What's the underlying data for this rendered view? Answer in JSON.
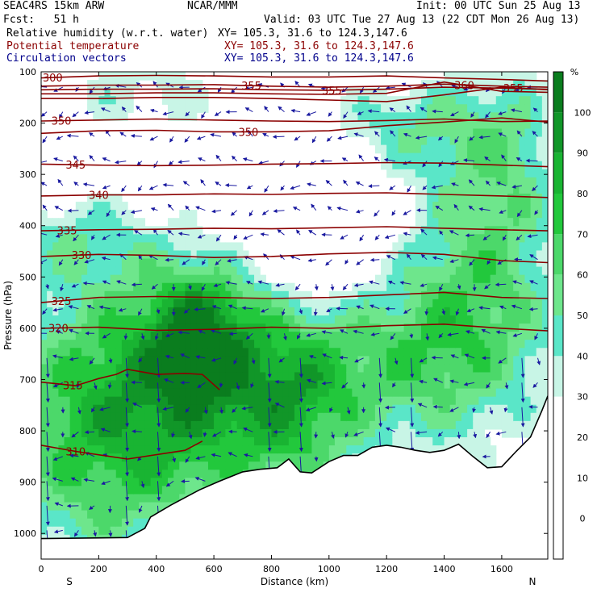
{
  "header": {
    "model": "SEAC4RS 15km ARW",
    "org": "NCAR/MMM",
    "init": "Init: 00 UTC Sun 25 Aug 13",
    "fcst": "Fcst:   51 h",
    "valid": "Valid: 03 UTC Tue 27 Aug 13 (22 CDT Mon 26 Aug 13)",
    "fields": [
      {
        "name": "Relative humidity (w.r.t. water)",
        "xy": "XY= 105.3, 31.6 to 124.3,147.6",
        "color": "#000000"
      },
      {
        "name": "Potential temperature",
        "xy": "XY= 105.3, 31.6 to 124.3,147.6",
        "color": "#8b0000"
      },
      {
        "name": "Circulation vectors",
        "xy": "XY= 105.3, 31.6 to 124.3,147.6",
        "color": "#00008b"
      }
    ]
  },
  "chart_data": {
    "type": "heatmap",
    "title": "",
    "xlabel": "Distance (km)",
    "ylabel": "Pressure (hPa)",
    "xlim": [
      0,
      1760
    ],
    "ylim": [
      1050,
      100
    ],
    "x_ticks": [
      0,
      200,
      400,
      600,
      800,
      1000,
      1200,
      1400,
      1600
    ],
    "y_ticks": [
      100,
      200,
      300,
      400,
      500,
      600,
      700,
      800,
      900,
      1000
    ],
    "left_end_label": "S",
    "right_end_label": "N",
    "colorbar": {
      "unit": "%",
      "ticks": [
        0,
        10,
        20,
        30,
        40,
        50,
        60,
        70,
        80,
        90,
        100
      ],
      "levels": [
        {
          "from": -10,
          "to": 30,
          "color": "#ffffff"
        },
        {
          "from": 30,
          "to": 40,
          "color": "#c8f5e6"
        },
        {
          "from": 40,
          "to": 50,
          "color": "#5ae6c8"
        },
        {
          "from": 50,
          "to": 60,
          "color": "#6ee68c"
        },
        {
          "from": 60,
          "to": 70,
          "color": "#4cd86a"
        },
        {
          "from": 70,
          "to": 80,
          "color": "#22c83c"
        },
        {
          "from": 80,
          "to": 90,
          "color": "#19b432"
        },
        {
          "from": 90,
          "to": 100,
          "color": "#119628"
        },
        {
          "from": 100,
          "to": 110,
          "color": "#0a7d1e"
        }
      ]
    },
    "theta_contours": [
      {
        "label": "300",
        "label_x": 40,
        "p": [
          [
            0,
            112
          ],
          [
            200,
            108
          ],
          [
            400,
            107
          ],
          [
            600,
            108
          ],
          [
            800,
            110
          ],
          [
            1000,
            110
          ],
          [
            1200,
            108
          ],
          [
            1400,
            112
          ],
          [
            1600,
            115
          ],
          [
            1760,
            118
          ]
        ]
      },
      {
        "label": "355",
        "label_x": 730,
        "p": [
          [
            0,
            128
          ],
          [
            200,
            126
          ],
          [
            400,
            126
          ],
          [
            600,
            125
          ],
          [
            800,
            128
          ],
          [
            1000,
            130
          ],
          [
            1200,
            128
          ],
          [
            1400,
            124
          ],
          [
            1600,
            128
          ],
          [
            1760,
            130
          ]
        ]
      },
      {
        "label": "355",
        "label_x": 1010,
        "p": [
          [
            0,
            135
          ],
          [
            200,
            134
          ],
          [
            400,
            134
          ],
          [
            600,
            133
          ],
          [
            800,
            135
          ],
          [
            1000,
            136
          ],
          [
            1200,
            134
          ],
          [
            1400,
            130
          ],
          [
            1600,
            132
          ],
          [
            1760,
            134
          ]
        ]
      },
      {
        "label": "360",
        "label_x": 1470,
        "p": [
          [
            0,
            143
          ],
          [
            200,
            143
          ],
          [
            400,
            141
          ],
          [
            600,
            141
          ],
          [
            800,
            143
          ],
          [
            1000,
            144
          ],
          [
            1200,
            142
          ],
          [
            1400,
            120
          ],
          [
            1600,
            138
          ],
          [
            1760,
            140
          ]
        ]
      },
      {
        "label": "355",
        "label_x": 1640,
        "p": [
          [
            0,
            152
          ],
          [
            200,
            152
          ],
          [
            400,
            150
          ],
          [
            600,
            150
          ],
          [
            800,
            152
          ],
          [
            1000,
            155
          ],
          [
            1200,
            158
          ],
          [
            1400,
            145
          ],
          [
            1600,
            130
          ],
          [
            1760,
            135
          ]
        ]
      },
      {
        "label": "350",
        "label_x": 70,
        "p": [
          [
            0,
            196
          ],
          [
            200,
            194
          ],
          [
            400,
            192
          ],
          [
            600,
            194
          ],
          [
            800,
            196
          ],
          [
            1000,
            197
          ],
          [
            1200,
            195
          ],
          [
            1400,
            192
          ],
          [
            1600,
            197
          ],
          [
            1760,
            196
          ]
        ]
      },
      {
        "label": "350",
        "label_x": 720,
        "p": [
          [
            0,
            220
          ],
          [
            200,
            215
          ],
          [
            400,
            214
          ],
          [
            600,
            217
          ],
          [
            800,
            217
          ],
          [
            1000,
            215
          ],
          [
            1200,
            205
          ],
          [
            1400,
            198
          ],
          [
            1600,
            190
          ],
          [
            1760,
            198
          ]
        ]
      },
      {
        "label": "345",
        "label_x": 120,
        "p": [
          [
            0,
            280
          ],
          [
            200,
            282
          ],
          [
            400,
            283
          ],
          [
            600,
            282
          ],
          [
            800,
            280
          ],
          [
            1000,
            279
          ],
          [
            1200,
            277
          ],
          [
            1400,
            278
          ],
          [
            1600,
            282
          ],
          [
            1760,
            285
          ]
        ]
      },
      {
        "label": "340",
        "label_x": 200,
        "p": [
          [
            0,
            342
          ],
          [
            200,
            340
          ],
          [
            400,
            340
          ],
          [
            600,
            338
          ],
          [
            800,
            339
          ],
          [
            1000,
            337
          ],
          [
            1200,
            336
          ],
          [
            1400,
            339
          ],
          [
            1600,
            342
          ],
          [
            1760,
            345
          ]
        ]
      },
      {
        "label": "335",
        "label_x": 90,
        "p": [
          [
            0,
            410
          ],
          [
            200,
            408
          ],
          [
            400,
            407
          ],
          [
            600,
            405
          ],
          [
            800,
            406
          ],
          [
            1000,
            404
          ],
          [
            1200,
            402
          ],
          [
            1400,
            405
          ],
          [
            1600,
            408
          ],
          [
            1760,
            410
          ]
        ]
      },
      {
        "label": "330",
        "label_x": 140,
        "p": [
          [
            0,
            460
          ],
          [
            200,
            456
          ],
          [
            400,
            458
          ],
          [
            600,
            462
          ],
          [
            800,
            460
          ],
          [
            1000,
            455
          ],
          [
            1200,
            452
          ],
          [
            1400,
            456
          ],
          [
            1600,
            468
          ],
          [
            1760,
            472
          ]
        ]
      },
      {
        "label": "325",
        "label_x": 70,
        "p": [
          [
            0,
            550
          ],
          [
            200,
            540
          ],
          [
            400,
            538
          ],
          [
            600,
            540
          ],
          [
            800,
            542
          ],
          [
            1000,
            540
          ],
          [
            1200,
            535
          ],
          [
            1400,
            530
          ],
          [
            1600,
            540
          ],
          [
            1760,
            542
          ]
        ]
      },
      {
        "label": "320",
        "label_x": 60,
        "p": [
          [
            0,
            600
          ],
          [
            200,
            598
          ],
          [
            400,
            604
          ],
          [
            600,
            602
          ],
          [
            800,
            598
          ],
          [
            1000,
            600
          ],
          [
            1200,
            595
          ],
          [
            1400,
            592
          ],
          [
            1600,
            600
          ],
          [
            1760,
            605
          ]
        ]
      },
      {
        "label": "315",
        "label_x": 110,
        "p": [
          [
            0,
            705
          ],
          [
            120,
            712
          ],
          [
            200,
            698
          ],
          [
            260,
            690
          ],
          [
            300,
            680
          ],
          [
            400,
            690
          ],
          [
            500,
            688
          ],
          [
            560,
            690
          ],
          [
            620,
            720
          ]
        ]
      },
      {
        "label": "310",
        "label_x": 120,
        "p": [
          [
            0,
            828
          ],
          [
            120,
            840
          ],
          [
            300,
            855
          ],
          [
            500,
            838
          ],
          [
            560,
            820
          ]
        ]
      }
    ],
    "terrain": [
      [
        0,
        1010
      ],
      [
        300,
        1008
      ],
      [
        360,
        990
      ],
      [
        380,
        968
      ],
      [
        450,
        945
      ],
      [
        550,
        915
      ],
      [
        620,
        898
      ],
      [
        700,
        880
      ],
      [
        760,
        875
      ],
      [
        820,
        872
      ],
      [
        860,
        855
      ],
      [
        900,
        880
      ],
      [
        940,
        882
      ],
      [
        1000,
        860
      ],
      [
        1050,
        848
      ],
      [
        1100,
        848
      ],
      [
        1150,
        832
      ],
      [
        1200,
        828
      ],
      [
        1250,
        832
      ],
      [
        1300,
        838
      ],
      [
        1350,
        842
      ],
      [
        1400,
        838
      ],
      [
        1450,
        826
      ],
      [
        1500,
        850
      ],
      [
        1550,
        872
      ],
      [
        1600,
        870
      ],
      [
        1650,
        840
      ],
      [
        1700,
        812
      ],
      [
        1740,
        760
      ],
      [
        1760,
        732
      ]
    ]
  }
}
